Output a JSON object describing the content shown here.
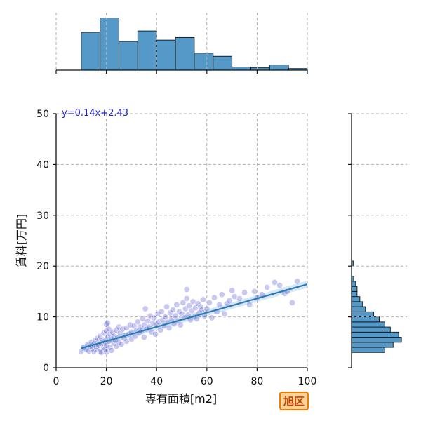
{
  "chart_data": {
    "type": "scatter",
    "xlabel": "専有面積[m2]",
    "ylabel": "賃料[万円]",
    "xlim": [
      0,
      100
    ],
    "ylim": [
      0,
      50
    ],
    "x_ticks": [
      0,
      20,
      40,
      60,
      80,
      100
    ],
    "y_ticks": [
      0,
      10,
      20,
      30,
      40,
      50
    ],
    "grid": true,
    "annotation": "y=0.14x+2.43",
    "badge": "旭区",
    "regression": {
      "slope": 0.14,
      "intercept": 2.43,
      "x_range": [
        10,
        100
      ]
    },
    "colors": {
      "points": "#3a3ac8",
      "line": "#2a7ab8",
      "hist": "#5499c7",
      "annotation": "#1f22c8",
      "badge_bg": "#ffd39a",
      "badge_border": "#f07a00"
    },
    "points": [
      [
        10,
        3.2
      ],
      [
        11,
        4.0
      ],
      [
        12,
        3.6
      ],
      [
        12.5,
        4.5
      ],
      [
        13,
        3.3
      ],
      [
        13.5,
        4.2
      ],
      [
        14,
        5.0
      ],
      [
        14.5,
        3.8
      ],
      [
        15,
        3.2
      ],
      [
        15,
        4.6
      ],
      [
        15.5,
        5.4
      ],
      [
        16,
        4.1
      ],
      [
        16.5,
        3.5
      ],
      [
        16.5,
        5.8
      ],
      [
        17,
        4.4
      ],
      [
        17.5,
        3.2
      ],
      [
        17.5,
        6.2
      ],
      [
        18,
        4.8
      ],
      [
        18,
        3.0
      ],
      [
        18.5,
        5.5
      ],
      [
        19,
        4.0
      ],
      [
        19,
        6.8
      ],
      [
        19.5,
        3.6
      ],
      [
        19.5,
        5.1
      ],
      [
        20,
        8.5
      ],
      [
        20,
        7.2
      ],
      [
        20,
        4.4
      ],
      [
        20,
        3.1
      ],
      [
        20.5,
        6.0
      ],
      [
        20.5,
        8.8
      ],
      [
        21,
        5.2
      ],
      [
        21,
        7.6
      ],
      [
        21.5,
        4.0
      ],
      [
        21.5,
        6.6
      ],
      [
        22,
        5.6
      ],
      [
        22,
        3.4
      ],
      [
        22.5,
        7.0
      ],
      [
        23,
        4.8
      ],
      [
        23,
        6.2
      ],
      [
        23.5,
        5.4
      ],
      [
        24,
        7.4
      ],
      [
        24,
        4.2
      ],
      [
        24.5,
        6.0
      ],
      [
        25,
        8.0
      ],
      [
        25,
        5.0
      ],
      [
        25.5,
        6.8
      ],
      [
        26,
        4.6
      ],
      [
        26.5,
        7.6
      ],
      [
        27,
        5.8
      ],
      [
        27.5,
        6.4
      ],
      [
        28,
        7.8
      ],
      [
        28,
        5.2
      ],
      [
        29,
        6.6
      ],
      [
        29.5,
        8.4
      ],
      [
        30,
        7.0
      ],
      [
        30,
        5.6
      ],
      [
        31,
        8.2
      ],
      [
        31.5,
        6.2
      ],
      [
        32,
        7.4
      ],
      [
        32.5,
        9.0
      ],
      [
        33,
        6.8
      ],
      [
        33.5,
        8.0
      ],
      [
        34,
        7.2
      ],
      [
        34.5,
        9.6
      ],
      [
        35,
        8.4
      ],
      [
        35,
        6.0
      ],
      [
        35.5,
        11.6
      ],
      [
        36,
        7.6
      ],
      [
        36.5,
        9.2
      ],
      [
        37,
        8.0
      ],
      [
        37.5,
        10.2
      ],
      [
        38,
        7.0
      ],
      [
        38.5,
        8.8
      ],
      [
        39,
        9.8
      ],
      [
        39.5,
        6.6
      ],
      [
        40,
        8.4
      ],
      [
        40.5,
        10.6
      ],
      [
        41,
        9.0
      ],
      [
        41.5,
        7.4
      ],
      [
        42,
        11.0
      ],
      [
        42.5,
        9.4
      ],
      [
        43,
        8.2
      ],
      [
        43.5,
        10.0
      ],
      [
        44,
        12.0
      ],
      [
        44.5,
        9.0
      ],
      [
        45,
        7.8
      ],
      [
        45.5,
        10.8
      ],
      [
        46,
        9.6
      ],
      [
        46.5,
        11.4
      ],
      [
        47,
        8.6
      ],
      [
        47.5,
        10.2
      ],
      [
        48,
        12.4
      ],
      [
        48.5,
        9.2
      ],
      [
        49,
        11.0
      ],
      [
        49.5,
        8.4
      ],
      [
        50,
        10.6
      ],
      [
        50.5,
        12.8
      ],
      [
        51,
        9.8
      ],
      [
        51.5,
        11.6
      ],
      [
        52,
        15.4
      ],
      [
        52,
        13.6
      ],
      [
        52.5,
        10.4
      ],
      [
        53,
        12.2
      ],
      [
        53.5,
        9.4
      ],
      [
        54,
        11.2
      ],
      [
        54.5,
        13.0
      ],
      [
        55,
        10.0
      ],
      [
        55.5,
        11.8
      ],
      [
        56,
        9.6
      ],
      [
        56.5,
        12.6
      ],
      [
        57,
        10.8
      ],
      [
        57.5,
        12.0
      ],
      [
        58,
        11.4
      ],
      [
        58.5,
        13.4
      ],
      [
        59,
        10.2
      ],
      [
        60,
        11.6
      ],
      [
        61,
        12.8
      ],
      [
        62,
        9.8
      ],
      [
        63,
        13.8
      ],
      [
        64,
        11.0
      ],
      [
        65,
        12.4
      ],
      [
        66,
        14.4
      ],
      [
        67,
        10.6
      ],
      [
        68,
        12.6
      ],
      [
        69,
        13.2
      ],
      [
        70,
        15.2
      ],
      [
        71,
        14.0
      ],
      [
        73,
        13.6
      ],
      [
        75,
        14.8
      ],
      [
        77,
        12.4
      ],
      [
        79,
        15.0
      ],
      [
        80,
        13.8
      ],
      [
        82,
        14.4
      ],
      [
        84,
        15.8
      ],
      [
        87,
        16.8
      ],
      [
        89,
        16.2
      ],
      [
        91,
        14.6
      ],
      [
        92,
        15.0
      ],
      [
        94,
        12.8
      ],
      [
        96,
        17.0
      ]
    ],
    "x_hist": {
      "bins": [
        [
          10,
          17.5
        ],
        [
          17.5,
          25
        ],
        [
          25,
          32.5
        ],
        [
          32.5,
          40
        ],
        [
          40,
          47.5
        ],
        [
          47.5,
          55
        ],
        [
          55,
          62.5
        ],
        [
          62.5,
          70
        ],
        [
          70,
          77.5
        ],
        [
          77.5,
          85
        ],
        [
          85,
          92.5
        ],
        [
          92.5,
          100
        ]
      ],
      "counts": [
        14.5,
        20,
        11,
        15,
        11.5,
        12.5,
        6.5,
        5.3,
        1.2,
        0.9,
        2.0,
        0.6
      ],
      "max": 22
    },
    "y_hist": {
      "bins": [
        [
          3,
          4
        ],
        [
          4,
          5
        ],
        [
          5,
          6
        ],
        [
          6,
          7
        ],
        [
          7,
          8
        ],
        [
          8,
          9
        ],
        [
          9,
          10
        ],
        [
          10,
          11
        ],
        [
          11,
          12
        ],
        [
          12,
          13
        ],
        [
          13,
          14
        ],
        [
          14,
          15
        ],
        [
          15,
          16
        ],
        [
          16,
          17
        ],
        [
          17,
          18
        ],
        [
          20,
          21
        ]
      ],
      "counts": [
        12,
        15,
        18,
        17,
        14,
        12,
        10,
        8,
        5,
        4,
        3,
        2,
        2,
        1.5,
        0.8,
        0.6
      ],
      "max": 20
    }
  }
}
